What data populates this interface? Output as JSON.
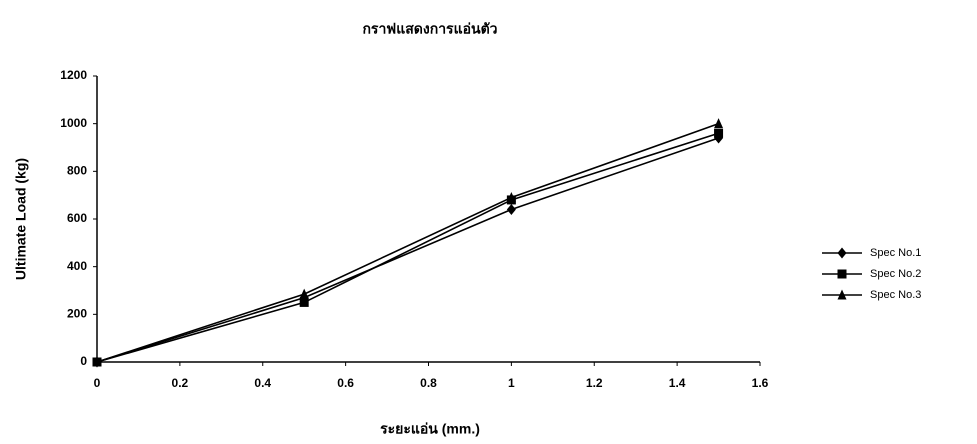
{
  "chart_data": {
    "type": "line",
    "title": "กราฟแสดงการแอ่นตัว",
    "x_label": "ระยะแอ่น (mm.)",
    "y_label": "Ultimate Load (kg)",
    "x": [
      0,
      0.5,
      1,
      1.5
    ],
    "series": [
      {
        "name": "Spec No.1",
        "color": "#000000",
        "marker": "diamond",
        "values": [
          0,
          270,
          640,
          940
        ]
      },
      {
        "name": "Spec No.2",
        "color": "#000000",
        "marker": "square",
        "values": [
          0,
          250,
          680,
          960
        ]
      },
      {
        "name": "Spec No.3",
        "color": "#000000",
        "marker": "triangle",
        "values": [
          0,
          285,
          690,
          1000
        ]
      }
    ],
    "xlim": [
      0,
      1.6
    ],
    "xticks": [
      0,
      0.2,
      0.4,
      0.6,
      0.8,
      1,
      1.2,
      1.4,
      1.6
    ],
    "ylim": [
      0,
      1200
    ],
    "yticks": [
      0,
      200,
      400,
      600,
      800,
      1000,
      1200
    ],
    "grid": false,
    "legend": "right"
  }
}
